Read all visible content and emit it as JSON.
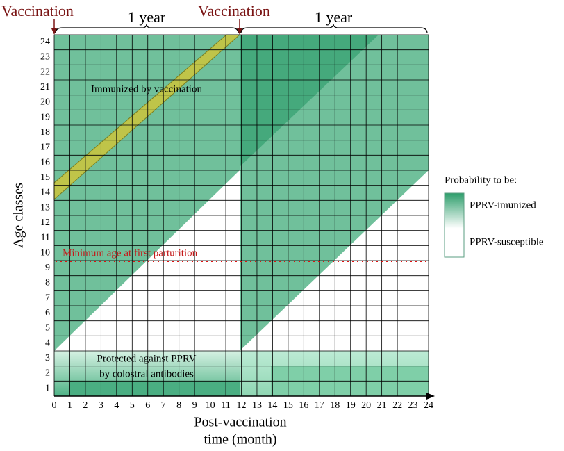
{
  "header": {
    "vaccination_left": "Vaccination",
    "vaccination_right": "Vaccination",
    "year_left": "1 year",
    "year_right": "1 year"
  },
  "axes": {
    "y_label": "Age classes",
    "x_label_line1": "Post-vaccination",
    "x_label_line2": "time (month)",
    "x_ticks": [
      "0",
      "1",
      "2",
      "3",
      "4",
      "5",
      "6",
      "7",
      "8",
      "9",
      "10",
      "11",
      "12",
      "13",
      "14",
      "15",
      "16",
      "17",
      "18",
      "19",
      "20",
      "21",
      "22",
      "23",
      "24"
    ],
    "y_ticks": [
      "1",
      "2",
      "3",
      "4",
      "5",
      "6",
      "7",
      "8",
      "9",
      "10",
      "11",
      "12",
      "13",
      "14",
      "15",
      "16",
      "17",
      "18",
      "19",
      "20",
      "21",
      "22",
      "23",
      "24"
    ]
  },
  "annotations": {
    "immunized": "Immunized by vaccination",
    "protected_line1": "Protected against PPRV",
    "protected_line2": "by colostral antibodies",
    "min_age": "Minimum age at first parturition"
  },
  "legend": {
    "title": "Probability to be:",
    "high": "PPRV-imunized",
    "low": "PPRV-susceptible"
  }
}
